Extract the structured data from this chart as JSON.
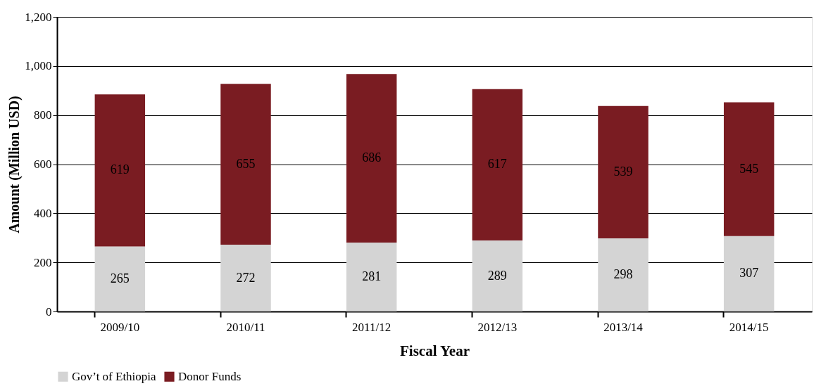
{
  "chart_data": {
    "type": "bar",
    "stacked": true,
    "xlabel": "Fiscal Year",
    "ylabel": "Amount (Million USD)",
    "categories": [
      "2009/10",
      "2010/11",
      "2011/12",
      "2012/13",
      "2013/14",
      "2014/15"
    ],
    "series": [
      {
        "name": "Gov’t of Ethiopia",
        "color": "#d4d4d4",
        "values": [
          265,
          272,
          281,
          289,
          298,
          307
        ]
      },
      {
        "name": "Donor Funds",
        "color": "#7a1c22",
        "values": [
          619,
          655,
          686,
          617,
          539,
          545
        ]
      }
    ],
    "ylim": [
      0,
      1200
    ],
    "yticks": [
      0,
      200,
      400,
      600,
      800,
      {
        "value": 1000,
        "label": "1,000"
      },
      {
        "value": 1200,
        "label": "1,200"
      }
    ],
    "grid": "y",
    "legend": "bottom",
    "data_labels": true
  }
}
